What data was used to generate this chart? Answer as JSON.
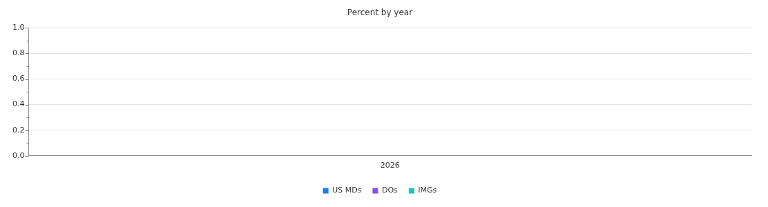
{
  "chart_data": {
    "type": "bar",
    "title": "Percent by year",
    "categories": [
      "2026"
    ],
    "series": [
      {
        "name": "US MDs",
        "color": "#1a7fe8",
        "values": [
          0
        ]
      },
      {
        "name": "DOs",
        "color": "#8a4ce6",
        "values": [
          0
        ]
      },
      {
        "name": "IMGs",
        "color": "#1ec4c4",
        "values": [
          0
        ]
      }
    ],
    "ylim": [
      0,
      1
    ],
    "yticks": [
      {
        "value": 0,
        "label": "0.0"
      },
      {
        "value": 0.1,
        "label": null
      },
      {
        "value": 0.2,
        "label": "0.2"
      },
      {
        "value": 0.3,
        "label": null
      },
      {
        "value": 0.4,
        "label": "0.4"
      },
      {
        "value": 0.5,
        "label": null
      },
      {
        "value": 0.6,
        "label": "0.6"
      },
      {
        "value": 0.7,
        "label": null
      },
      {
        "value": 0.8,
        "label": "0.8"
      },
      {
        "value": 0.9,
        "label": null
      },
      {
        "value": 1,
        "label": "1.0"
      }
    ],
    "grid": "y",
    "legend": "bottom"
  }
}
